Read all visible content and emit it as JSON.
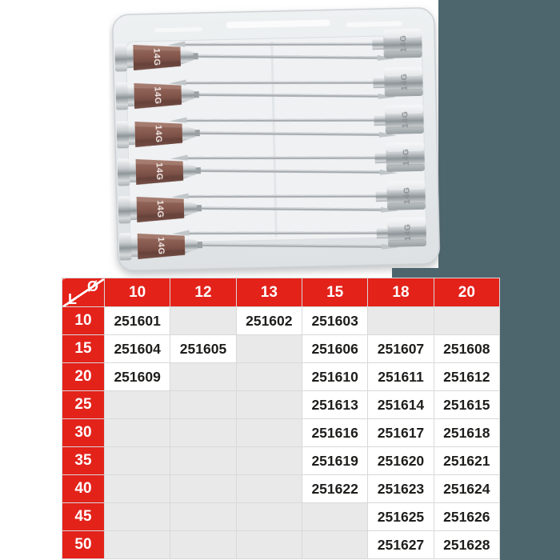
{
  "page": {
    "background": "#ffffff",
    "panel_color": "#4d666e"
  },
  "photo": {
    "description": "clear plastic case with twelve 14G hypodermic needles",
    "hub_gauge_label": "14G"
  },
  "table": {
    "corner": {
      "diameter_symbol": "Ø",
      "length_symbol": "L"
    },
    "columns": [
      "10",
      "12",
      "13",
      "15",
      "18",
      "20"
    ],
    "rows": [
      {
        "label": "10",
        "cells": [
          "251601",
          "",
          "251602",
          "251603",
          "",
          ""
        ]
      },
      {
        "label": "15",
        "cells": [
          "251604",
          "251605",
          "",
          "251606",
          "251607",
          "251608"
        ]
      },
      {
        "label": "20",
        "cells": [
          "251609",
          "",
          "",
          "251610",
          "251611",
          "251612"
        ]
      },
      {
        "label": "25",
        "cells": [
          "",
          "",
          "",
          "251613",
          "251614",
          "251615"
        ]
      },
      {
        "label": "30",
        "cells": [
          "",
          "",
          "",
          "251616",
          "251617",
          "251618"
        ]
      },
      {
        "label": "35",
        "cells": [
          "",
          "",
          "",
          "251619",
          "251620",
          "251621"
        ]
      },
      {
        "label": "40",
        "cells": [
          "",
          "",
          "",
          "251622",
          "251623",
          "251624"
        ]
      },
      {
        "label": "45",
        "cells": [
          "",
          "",
          "",
          "",
          "251625",
          "251626"
        ]
      },
      {
        "label": "50",
        "cells": [
          "",
          "",
          "",
          "",
          "251627",
          "251628"
        ]
      }
    ],
    "colors": {
      "header_red": "#e3221a",
      "empty_cell": "#e9e9e9",
      "filled_cell": "#ffffff",
      "grid_line": "#d9d9d9",
      "value_text": "#1d1d1b",
      "header_text": "#ffffff"
    }
  }
}
